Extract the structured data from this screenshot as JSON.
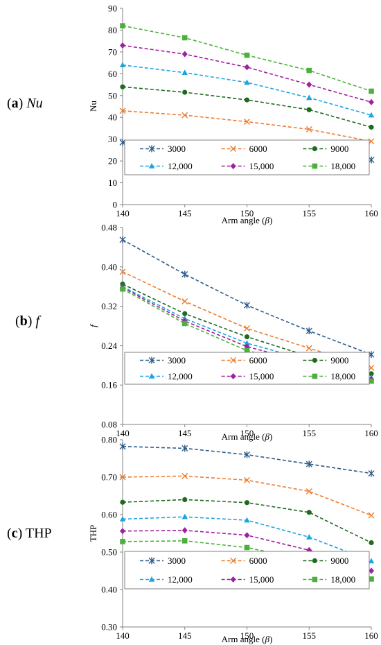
{
  "series_style": [
    {
      "color": "#2e5c8a",
      "marker": "star"
    },
    {
      "color": "#ed7d31",
      "marker": "x"
    },
    {
      "color": "#1e6b1e",
      "marker": "circle"
    },
    {
      "color": "#1fa3e0",
      "marker": "triangle"
    },
    {
      "color": "#a020a0",
      "marker": "diamond"
    },
    {
      "color": "#4cb03c",
      "marker": "square"
    }
  ],
  "panels": [
    {
      "letter": "a",
      "var": "Nu",
      "italic": true
    },
    {
      "letter": "b",
      "var": "f",
      "italic": true
    },
    {
      "letter": "c",
      "var": "THP",
      "italic": false
    }
  ],
  "chart_data": [
    {
      "type": "line",
      "ylabel": "Nu",
      "xlabel": "Arm angle (β)",
      "x": [
        140,
        145,
        150,
        155,
        160
      ],
      "xlim": [
        140,
        160
      ],
      "ylim": [
        0,
        90
      ],
      "yticks": [
        "0",
        "10",
        "20",
        "30",
        "40",
        "50",
        "60",
        "70",
        "80",
        "90"
      ],
      "xticks": [
        "140",
        "145",
        "150",
        "155",
        "160"
      ],
      "grid": false,
      "legend": "bottom inside plot",
      "series": [
        {
          "name": "3000",
          "values": [
            28.5,
            27,
            25,
            22.5,
            20.5
          ]
        },
        {
          "name": "6000",
          "values": [
            43,
            41,
            38,
            34.5,
            29
          ]
        },
        {
          "name": "9000",
          "values": [
            54,
            51.5,
            48,
            43.5,
            35.5
          ]
        },
        {
          "name": "12,000",
          "values": [
            64,
            60.5,
            56,
            49,
            41
          ]
        },
        {
          "name": "15,000",
          "values": [
            73,
            69,
            63,
            55,
            47
          ]
        },
        {
          "name": "18,000",
          "values": [
            82,
            76.5,
            68.5,
            61.5,
            52
          ]
        }
      ]
    },
    {
      "type": "line",
      "ylabel": "f",
      "xlabel": "Arm angle (β)",
      "x": [
        140,
        145,
        150,
        155,
        160
      ],
      "xlim": [
        140,
        160
      ],
      "ylim": [
        0.08,
        0.48
      ],
      "yticks": [
        "0.08",
        "0.16",
        "0.24",
        "0.32",
        "0.40",
        "0.48"
      ],
      "xticks": [
        "140",
        "145",
        "150",
        "155",
        "160"
      ],
      "grid": false,
      "legend": "bottom inside plot",
      "series": [
        {
          "name": "3000",
          "values": [
            0.455,
            0.385,
            0.322,
            0.27,
            0.222
          ]
        },
        {
          "name": "6000",
          "values": [
            0.39,
            0.33,
            0.275,
            0.235,
            0.195
          ]
        },
        {
          "name": "9000",
          "values": [
            0.365,
            0.305,
            0.258,
            0.218,
            0.183
          ]
        },
        {
          "name": "12,000",
          "values": [
            0.36,
            0.295,
            0.245,
            0.21,
            0.175
          ]
        },
        {
          "name": "15,000",
          "values": [
            0.358,
            0.29,
            0.238,
            0.205,
            0.172
          ]
        },
        {
          "name": "18,000",
          "values": [
            0.355,
            0.285,
            0.23,
            0.2,
            0.168
          ]
        }
      ]
    },
    {
      "type": "line",
      "ylabel": "THP",
      "xlabel": "Arm angle (β)",
      "x": [
        140,
        145,
        150,
        155,
        160
      ],
      "xlim": [
        140,
        160
      ],
      "ylim": [
        0.3,
        0.8
      ],
      "yticks": [
        "0.30",
        "0.40",
        "0.50",
        "0.60",
        "0.70",
        "0.80"
      ],
      "xticks": [
        "140",
        "145",
        "150",
        "155",
        "160"
      ],
      "grid": false,
      "legend": "bottom inside plot",
      "series": [
        {
          "name": "3000",
          "values": [
            0.782,
            0.777,
            0.76,
            0.735,
            0.71
          ]
        },
        {
          "name": "6000",
          "values": [
            0.7,
            0.703,
            0.692,
            0.662,
            0.598
          ]
        },
        {
          "name": "9000",
          "values": [
            0.633,
            0.64,
            0.632,
            0.606,
            0.525
          ]
        },
        {
          "name": "12,000",
          "values": [
            0.588,
            0.594,
            0.585,
            0.54,
            0.476
          ]
        },
        {
          "name": "15,000",
          "values": [
            0.556,
            0.558,
            0.545,
            0.505,
            0.45
          ]
        },
        {
          "name": "18,000",
          "values": [
            0.528,
            0.53,
            0.512,
            0.478,
            0.428
          ]
        }
      ]
    }
  ]
}
